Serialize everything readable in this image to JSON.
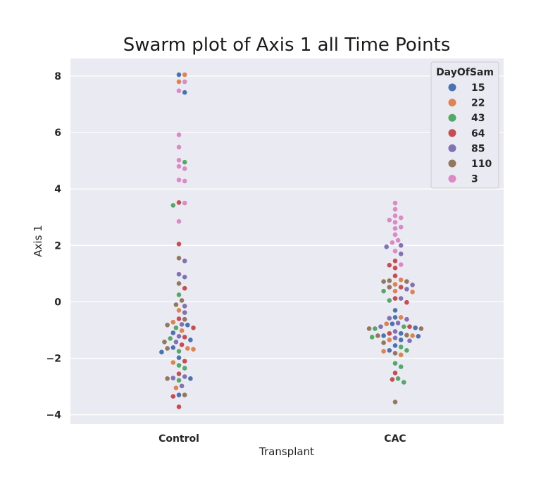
{
  "chart_data": {
    "type": "scatter",
    "title": "Swarm plot of Axis 1 all Time Points",
    "xlabel": "Transplant",
    "ylabel": "Axis 1",
    "categories": [
      "Control",
      "CAC"
    ],
    "ylim": [
      -4.35,
      8.6
    ],
    "yticks": [
      8,
      6,
      4,
      2,
      0,
      -2,
      -4
    ],
    "ytick_labels": [
      "8",
      "6",
      "4",
      "2",
      "0",
      "−2",
      "−4"
    ],
    "grid": true,
    "legend_position": "top-right",
    "legend": {
      "title": "DayOfSam",
      "entries": [
        {
          "name": "15",
          "color": "#4c72b0"
        },
        {
          "name": "22",
          "color": "#dd8452"
        },
        {
          "name": "43",
          "color": "#55a868"
        },
        {
          "name": "64",
          "color": "#c44e52"
        },
        {
          "name": "85",
          "color": "#8172b3"
        },
        {
          "name": "110",
          "color": "#937860"
        },
        {
          "name": "3",
          "color": "#da8bc3"
        }
      ]
    },
    "series": [
      {
        "name": "15",
        "values": [
          {
            "x": "Control",
            "y": 8.05
          },
          {
            "x": "Control",
            "y": 7.42
          },
          {
            "x": "Control",
            "y": -0.82
          },
          {
            "x": "Control",
            "y": -1.1
          },
          {
            "x": "Control",
            "y": -1.35
          },
          {
            "x": "Control",
            "y": -1.62
          },
          {
            "x": "Control",
            "y": -1.78
          },
          {
            "x": "Control",
            "y": -1.98
          },
          {
            "x": "Control",
            "y": -2.72
          },
          {
            "x": "Control",
            "y": -3.3
          },
          {
            "x": "CAC",
            "y": -0.3
          },
          {
            "x": "CAC",
            "y": -0.55
          },
          {
            "x": "CAC",
            "y": -0.78
          },
          {
            "x": "CAC",
            "y": -0.92
          },
          {
            "x": "CAC",
            "y": -1.12
          },
          {
            "x": "CAC",
            "y": -1.2
          },
          {
            "x": "CAC",
            "y": -1.22
          },
          {
            "x": "CAC",
            "y": -1.35
          },
          {
            "x": "CAC",
            "y": -1.55
          },
          {
            "x": "CAC",
            "y": -1.72
          }
        ]
      },
      {
        "name": "22",
        "values": [
          {
            "x": "Control",
            "y": 8.05
          },
          {
            "x": "Control",
            "y": 7.8
          },
          {
            "x": "Control",
            "y": -0.3
          },
          {
            "x": "Control",
            "y": -0.72
          },
          {
            "x": "Control",
            "y": -1.02
          },
          {
            "x": "Control",
            "y": -1.65
          },
          {
            "x": "Control",
            "y": -1.68
          },
          {
            "x": "Control",
            "y": -2.15
          },
          {
            "x": "Control",
            "y": -3.05
          },
          {
            "x": "CAC",
            "y": 0.78
          },
          {
            "x": "CAC",
            "y": 0.62
          },
          {
            "x": "CAC",
            "y": 0.38
          },
          {
            "x": "CAC",
            "y": 0.35
          },
          {
            "x": "CAC",
            "y": -0.55
          },
          {
            "x": "CAC",
            "y": -0.78
          },
          {
            "x": "CAC",
            "y": -1.2
          },
          {
            "x": "CAC",
            "y": -1.35
          },
          {
            "x": "CAC",
            "y": -1.75
          },
          {
            "x": "CAC",
            "y": -1.88
          }
        ]
      },
      {
        "name": "43",
        "values": [
          {
            "x": "Control",
            "y": 4.95
          },
          {
            "x": "Control",
            "y": 3.42
          },
          {
            "x": "Control",
            "y": 0.25
          },
          {
            "x": "Control",
            "y": -0.92
          },
          {
            "x": "Control",
            "y": -1.3
          },
          {
            "x": "Control",
            "y": -1.75
          },
          {
            "x": "Control",
            "y": -2.25
          },
          {
            "x": "Control",
            "y": -2.35
          },
          {
            "x": "Control",
            "y": -2.78
          },
          {
            "x": "CAC",
            "y": 0.38
          },
          {
            "x": "CAC",
            "y": 0.05
          },
          {
            "x": "CAC",
            "y": -0.88
          },
          {
            "x": "CAC",
            "y": -0.95
          },
          {
            "x": "CAC",
            "y": -1.25
          },
          {
            "x": "CAC",
            "y": -1.6
          },
          {
            "x": "CAC",
            "y": -1.72
          },
          {
            "x": "CAC",
            "y": -2.18
          },
          {
            "x": "CAC",
            "y": -2.3
          },
          {
            "x": "CAC",
            "y": -2.72
          },
          {
            "x": "CAC",
            "y": -2.85
          }
        ]
      },
      {
        "name": "64",
        "values": [
          {
            "x": "Control",
            "y": 3.52
          },
          {
            "x": "Control",
            "y": 2.05
          },
          {
            "x": "Control",
            "y": 0.48
          },
          {
            "x": "Control",
            "y": -0.6
          },
          {
            "x": "Control",
            "y": -0.92
          },
          {
            "x": "Control",
            "y": -1.25
          },
          {
            "x": "Control",
            "y": -1.52
          },
          {
            "x": "Control",
            "y": -2.1
          },
          {
            "x": "Control",
            "y": -2.55
          },
          {
            "x": "Control",
            "y": -3.35
          },
          {
            "x": "Control",
            "y": -3.72
          },
          {
            "x": "CAC",
            "y": 1.45
          },
          {
            "x": "CAC",
            "y": 1.3
          },
          {
            "x": "CAC",
            "y": 1.2
          },
          {
            "x": "CAC",
            "y": 0.92
          },
          {
            "x": "CAC",
            "y": 0.52
          },
          {
            "x": "CAC",
            "y": 0.12
          },
          {
            "x": "CAC",
            "y": -0.02
          },
          {
            "x": "CAC",
            "y": -0.88
          },
          {
            "x": "CAC",
            "y": -1.12
          },
          {
            "x": "CAC",
            "y": -2.52
          },
          {
            "x": "CAC",
            "y": -2.75
          }
        ]
      },
      {
        "name": "85",
        "values": [
          {
            "x": "Control",
            "y": 1.45
          },
          {
            "x": "Control",
            "y": 0.98
          },
          {
            "x": "Control",
            "y": 0.88
          },
          {
            "x": "Control",
            "y": -0.15
          },
          {
            "x": "Control",
            "y": -0.38
          },
          {
            "x": "Control",
            "y": -0.8
          },
          {
            "x": "Control",
            "y": -1.22
          },
          {
            "x": "Control",
            "y": -1.42
          },
          {
            "x": "Control",
            "y": -2.65
          },
          {
            "x": "Control",
            "y": -2.7
          },
          {
            "x": "Control",
            "y": -2.98
          },
          {
            "x": "CAC",
            "y": 2.0
          },
          {
            "x": "CAC",
            "y": 1.95
          },
          {
            "x": "CAC",
            "y": 1.7
          },
          {
            "x": "CAC",
            "y": 0.6
          },
          {
            "x": "CAC",
            "y": 0.45
          },
          {
            "x": "CAC",
            "y": 0.12
          },
          {
            "x": "CAC",
            "y": -0.58
          },
          {
            "x": "CAC",
            "y": -0.62
          },
          {
            "x": "CAC",
            "y": -0.75
          },
          {
            "x": "CAC",
            "y": -0.88
          },
          {
            "x": "CAC",
            "y": -1.05
          },
          {
            "x": "CAC",
            "y": -1.28
          },
          {
            "x": "CAC",
            "y": -1.38
          }
        ]
      },
      {
        "name": "110",
        "values": [
          {
            "x": "Control",
            "y": 1.55
          },
          {
            "x": "Control",
            "y": 0.65
          },
          {
            "x": "Control",
            "y": 0.05
          },
          {
            "x": "Control",
            "y": -0.1
          },
          {
            "x": "Control",
            "y": -0.62
          },
          {
            "x": "Control",
            "y": -0.82
          },
          {
            "x": "Control",
            "y": -1.42
          },
          {
            "x": "Control",
            "y": -1.65
          },
          {
            "x": "Control",
            "y": -2.72
          },
          {
            "x": "Control",
            "y": -3.3
          },
          {
            "x": "CAC",
            "y": 0.75
          },
          {
            "x": "CAC",
            "y": 0.72
          },
          {
            "x": "CAC",
            "y": 0.72
          },
          {
            "x": "CAC",
            "y": 0.52
          },
          {
            "x": "CAC",
            "y": -0.95
          },
          {
            "x": "CAC",
            "y": -0.95
          },
          {
            "x": "CAC",
            "y": -1.18
          },
          {
            "x": "CAC",
            "y": -1.2
          },
          {
            "x": "CAC",
            "y": -1.45
          },
          {
            "x": "CAC",
            "y": -1.82
          },
          {
            "x": "CAC",
            "y": -3.55
          }
        ]
      },
      {
        "name": "3",
        "values": [
          {
            "x": "Control",
            "y": 7.8
          },
          {
            "x": "Control",
            "y": 7.48
          },
          {
            "x": "Control",
            "y": 5.92
          },
          {
            "x": "Control",
            "y": 5.48
          },
          {
            "x": "Control",
            "y": 5.02
          },
          {
            "x": "Control",
            "y": 4.8
          },
          {
            "x": "Control",
            "y": 4.72
          },
          {
            "x": "Control",
            "y": 4.32
          },
          {
            "x": "Control",
            "y": 4.28
          },
          {
            "x": "Control",
            "y": 3.5
          },
          {
            "x": "Control",
            "y": 2.85
          },
          {
            "x": "CAC",
            "y": 3.5
          },
          {
            "x": "CAC",
            "y": 3.28
          },
          {
            "x": "CAC",
            "y": 3.05
          },
          {
            "x": "CAC",
            "y": 2.98
          },
          {
            "x": "CAC",
            "y": 2.9
          },
          {
            "x": "CAC",
            "y": 2.82
          },
          {
            "x": "CAC",
            "y": 2.65
          },
          {
            "x": "CAC",
            "y": 2.6
          },
          {
            "x": "CAC",
            "y": 2.38
          },
          {
            "x": "CAC",
            "y": 2.18
          },
          {
            "x": "CAC",
            "y": 2.1
          },
          {
            "x": "CAC",
            "y": 1.8
          },
          {
            "x": "CAC",
            "y": 1.32
          }
        ]
      }
    ]
  }
}
